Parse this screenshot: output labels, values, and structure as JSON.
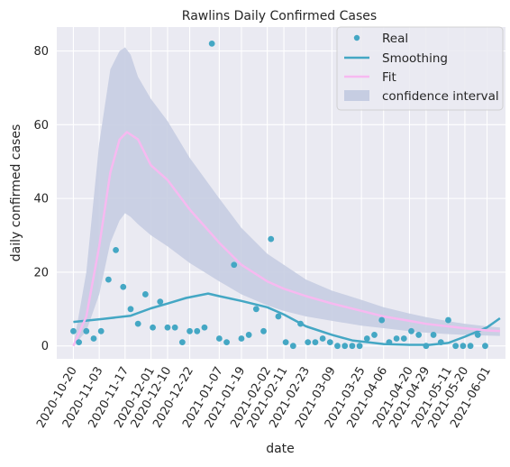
{
  "chart_data": {
    "type": "line",
    "title": "Rawlins Daily Confirmed Cases",
    "xlabel": "date",
    "ylabel": "daily confirmed cases",
    "ylim": [
      -3.5,
      86.5
    ],
    "xlim": [
      "2020-10-11",
      "2021-06-11"
    ],
    "yticks": [
      0,
      20,
      40,
      60,
      80
    ],
    "xticks": [
      "2020-10-20",
      "2020-11-03",
      "2020-11-17",
      "2020-12-01",
      "2020-12-10",
      "2020-12-22",
      "2021-01-07",
      "2021-01-19",
      "2021-02-02",
      "2021-02-11",
      "2021-02-23",
      "2021-03-09",
      "2021-03-25",
      "2021-04-06",
      "2021-04-20",
      "2021-04-29",
      "2021-05-11",
      "2021-05-20",
      "2021-06-01"
    ],
    "grid": true,
    "legend_position": "top-right",
    "colors": {
      "background": "#eaeaf2",
      "grid": "#ffffff",
      "real": "#44a7c4",
      "smoothing": "#44a7c4",
      "fit": "#f7b9f0",
      "ci": "#c6cde2"
    },
    "series": [
      {
        "name": "Real",
        "kind": "scatter",
        "points": [
          [
            "2020-10-20",
            4
          ],
          [
            "2020-10-23",
            1
          ],
          [
            "2020-10-27",
            4
          ],
          [
            "2020-10-31",
            2
          ],
          [
            "2020-11-04",
            4
          ],
          [
            "2020-11-08",
            18
          ],
          [
            "2020-11-12",
            26
          ],
          [
            "2020-11-16",
            16
          ],
          [
            "2020-11-20",
            10
          ],
          [
            "2020-11-24",
            6
          ],
          [
            "2020-11-28",
            14
          ],
          [
            "2020-12-02",
            5
          ],
          [
            "2020-12-06",
            12
          ],
          [
            "2020-12-10",
            5
          ],
          [
            "2020-12-14",
            5
          ],
          [
            "2020-12-18",
            1
          ],
          [
            "2020-12-22",
            4
          ],
          [
            "2020-12-26",
            4
          ],
          [
            "2020-12-30",
            5
          ],
          [
            "2021-01-03",
            82
          ],
          [
            "2021-01-07",
            2
          ],
          [
            "2021-01-11",
            1
          ],
          [
            "2021-01-15",
            22
          ],
          [
            "2021-01-19",
            2
          ],
          [
            "2021-01-23",
            3
          ],
          [
            "2021-01-27",
            10
          ],
          [
            "2021-01-31",
            4
          ],
          [
            "2021-02-04",
            29
          ],
          [
            "2021-02-08",
            8
          ],
          [
            "2021-02-12",
            1
          ],
          [
            "2021-02-16",
            0
          ],
          [
            "2021-02-20",
            6
          ],
          [
            "2021-02-24",
            1
          ],
          [
            "2021-02-28",
            1
          ],
          [
            "2021-03-04",
            2
          ],
          [
            "2021-03-08",
            1
          ],
          [
            "2021-03-12",
            0
          ],
          [
            "2021-03-16",
            0
          ],
          [
            "2021-03-20",
            0
          ],
          [
            "2021-03-24",
            0
          ],
          [
            "2021-03-28",
            2
          ],
          [
            "2021-04-01",
            3
          ],
          [
            "2021-04-05",
            7
          ],
          [
            "2021-04-09",
            1
          ],
          [
            "2021-04-13",
            2
          ],
          [
            "2021-04-17",
            2
          ],
          [
            "2021-04-21",
            4
          ],
          [
            "2021-04-25",
            3
          ],
          [
            "2021-04-29",
            0
          ],
          [
            "2021-05-03",
            3
          ],
          [
            "2021-05-07",
            1
          ],
          [
            "2021-05-11",
            7
          ],
          [
            "2021-05-15",
            0
          ],
          [
            "2021-05-19",
            0
          ],
          [
            "2021-05-23",
            0
          ],
          [
            "2021-05-27",
            3
          ],
          [
            "2021-05-31",
            0
          ]
        ]
      },
      {
        "name": "Smoothing",
        "kind": "line",
        "points": [
          [
            "2020-10-20",
            6.5
          ],
          [
            "2020-11-05",
            7.3
          ],
          [
            "2020-11-20",
            8.2
          ],
          [
            "2020-12-01",
            10.2
          ],
          [
            "2020-12-10",
            11.5
          ],
          [
            "2020-12-20",
            13.0
          ],
          [
            "2021-01-01",
            14.2
          ],
          [
            "2021-01-07",
            13.5
          ],
          [
            "2021-01-19",
            12.2
          ],
          [
            "2021-02-02",
            10.5
          ],
          [
            "2021-02-11",
            8.5
          ],
          [
            "2021-02-23",
            5.3
          ],
          [
            "2021-03-09",
            3.0
          ],
          [
            "2021-03-20",
            1.5
          ],
          [
            "2021-04-06",
            0.5
          ],
          [
            "2021-04-20",
            0.3
          ],
          [
            "2021-05-01",
            0.3
          ],
          [
            "2021-05-11",
            0.8
          ],
          [
            "2021-05-20",
            2.5
          ],
          [
            "2021-06-01",
            5.0
          ],
          [
            "2021-06-08",
            7.5
          ]
        ]
      },
      {
        "name": "Fit",
        "kind": "line",
        "points": [
          [
            "2020-10-20",
            0
          ],
          [
            "2020-10-27",
            8
          ],
          [
            "2020-11-03",
            27
          ],
          [
            "2020-11-09",
            47
          ],
          [
            "2020-11-14",
            56
          ],
          [
            "2020-11-18",
            58
          ],
          [
            "2020-11-24",
            56
          ],
          [
            "2020-12-01",
            49
          ],
          [
            "2020-12-10",
            45
          ],
          [
            "2020-12-22",
            37
          ],
          [
            "2021-01-07",
            28
          ],
          [
            "2021-01-19",
            22
          ],
          [
            "2021-02-02",
            17.5
          ],
          [
            "2021-02-11",
            15.5
          ],
          [
            "2021-02-23",
            13.5
          ],
          [
            "2021-03-09",
            11.5
          ],
          [
            "2021-03-25",
            9.5
          ],
          [
            "2021-04-06",
            8
          ],
          [
            "2021-04-20",
            6.8
          ],
          [
            "2021-04-29",
            6
          ],
          [
            "2021-05-11",
            5.3
          ],
          [
            "2021-05-20",
            4.8
          ],
          [
            "2021-06-01",
            4.2
          ],
          [
            "2021-06-08",
            4.0
          ]
        ]
      },
      {
        "name": "confidence interval",
        "kind": "band",
        "upper": [
          [
            "2020-10-20",
            0
          ],
          [
            "2020-10-27",
            20
          ],
          [
            "2020-11-03",
            55
          ],
          [
            "2020-11-09",
            75
          ],
          [
            "2020-11-14",
            80
          ],
          [
            "2020-11-17",
            81
          ],
          [
            "2020-11-20",
            79
          ],
          [
            "2020-11-24",
            73
          ],
          [
            "2020-12-01",
            67
          ],
          [
            "2020-12-10",
            61
          ],
          [
            "2020-12-22",
            51
          ],
          [
            "2021-01-07",
            40
          ],
          [
            "2021-01-19",
            32
          ],
          [
            "2021-02-02",
            25
          ],
          [
            "2021-02-11",
            22
          ],
          [
            "2021-02-23",
            18
          ],
          [
            "2021-03-09",
            15
          ],
          [
            "2021-03-25",
            12.5
          ],
          [
            "2021-04-06",
            10.5
          ],
          [
            "2021-04-20",
            8.8
          ],
          [
            "2021-04-29",
            7.8
          ],
          [
            "2021-05-11",
            6.7
          ],
          [
            "2021-05-20",
            6.0
          ],
          [
            "2021-06-01",
            5.3
          ],
          [
            "2021-06-08",
            5.0
          ]
        ],
        "lower": [
          [
            "2020-10-20",
            0
          ],
          [
            "2020-10-27",
            4
          ],
          [
            "2020-11-03",
            14
          ],
          [
            "2020-11-09",
            28
          ],
          [
            "2020-11-14",
            34
          ],
          [
            "2020-11-17",
            36
          ],
          [
            "2020-11-20",
            35
          ],
          [
            "2020-11-24",
            33
          ],
          [
            "2020-12-01",
            30
          ],
          [
            "2020-12-10",
            27
          ],
          [
            "2020-12-22",
            22.5
          ],
          [
            "2021-01-07",
            17.5
          ],
          [
            "2021-01-19",
            14
          ],
          [
            "2021-02-02",
            11
          ],
          [
            "2021-02-11",
            9.5
          ],
          [
            "2021-02-23",
            8
          ],
          [
            "2021-03-09",
            6.8
          ],
          [
            "2021-03-25",
            5.5
          ],
          [
            "2021-04-06",
            4.8
          ],
          [
            "2021-04-20",
            4.0
          ],
          [
            "2021-04-29",
            3.6
          ],
          [
            "2021-05-11",
            3.2
          ],
          [
            "2021-05-20",
            3.0
          ],
          [
            "2021-06-01",
            2.8
          ],
          [
            "2021-06-08",
            2.7
          ]
        ]
      }
    ],
    "legend": [
      "Real",
      "Smoothing",
      "Fit",
      "confidence interval"
    ]
  }
}
